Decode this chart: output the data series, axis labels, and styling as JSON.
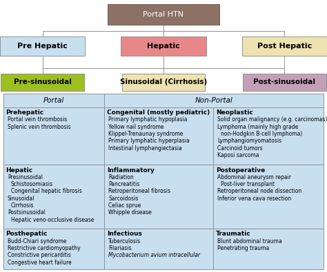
{
  "title": "Portal HTN",
  "top_box_color": "#8B7265",
  "level2": [
    {
      "label": "Pre Hepatic",
      "color": "#C8E0EE"
    },
    {
      "label": "Hepatic",
      "color": "#E8878A"
    },
    {
      "label": "Post Hepatic",
      "color": "#EDE3B0"
    }
  ],
  "level3": [
    {
      "label": "Pre-sinusoidal",
      "color": "#9DC020"
    },
    {
      "label": "Sinusoidal (Cirrhosis)",
      "color": "#EDE3B0"
    },
    {
      "label": "Post-sinusoidal",
      "color": "#C4A0B8"
    }
  ],
  "table_bg": "#C8DFF0",
  "table_header_portal": "Portal",
  "table_header_nonportal": "Non-Portal",
  "rows": [
    {
      "col1_title": "Prehepatic",
      "col1_items": [
        "Portal vein thrombosis",
        "Splenic vein thrombosis"
      ],
      "col2_title": "Congenital (mostly pediatric)",
      "col2_items": [
        "Primary lymphatic hypoplasia",
        "Yellow nail syndrome",
        "Klippel-Trenaunay syndrome",
        "Primary lymphatic hyperplasia",
        "Intestinal lymphangiectasia"
      ],
      "col3_title": "Neoplastic",
      "col3_items": [
        "Solid organ malignancy (e.g. carcinomas)",
        "Lymphoma (mainly high grade",
        "  non-Hodgkin B-cell lymphoma)",
        "Lymphangiomyomatosis",
        "Carcinoid tumors",
        "Kaposi sarcoma"
      ]
    },
    {
      "col1_title": "Hepatic",
      "col1_items": [
        "Presinusoidal",
        "  Schistosomiasis",
        "  Congenital hepatic fibrosis",
        "Sinusoidal",
        "  Cirrhosis",
        "Postsinusoidal",
        "  Hepatic veno-occlusive disease"
      ],
      "col2_title": "Inflammatory",
      "col2_items": [
        "Radiation",
        "Pancreatitis",
        "Retroperitoneal fibrosis",
        "Sarcoidosis",
        "Celiac sprue",
        "Whipple disease"
      ],
      "col3_title": "Postoperative",
      "col3_items": [
        "Abdominal aneurysm repair",
        "  Post-liver transplant",
        "Retroperitoneal node dissection",
        "Inferior vena cava resection"
      ]
    },
    {
      "col1_title": "Posthepatic",
      "col1_items": [
        "Budd-Chiari syndrome",
        "Restrictive cardiomyopathy",
        "Constrictive pericarditis",
        "Congestive heart failure"
      ],
      "col2_title": "Infectious",
      "col2_items": [
        "Tuberculosis",
        "Filariasis",
        "Mycobacterium avium intracellular"
      ],
      "col3_title": "Traumatic",
      "col3_items": [
        "Blunt abdominal trauma",
        "Penetrating trauma"
      ]
    }
  ],
  "col_splits": [
    0.0,
    0.315,
    0.655,
    1.0
  ],
  "line_color": "#909090",
  "border_color": "#909090"
}
